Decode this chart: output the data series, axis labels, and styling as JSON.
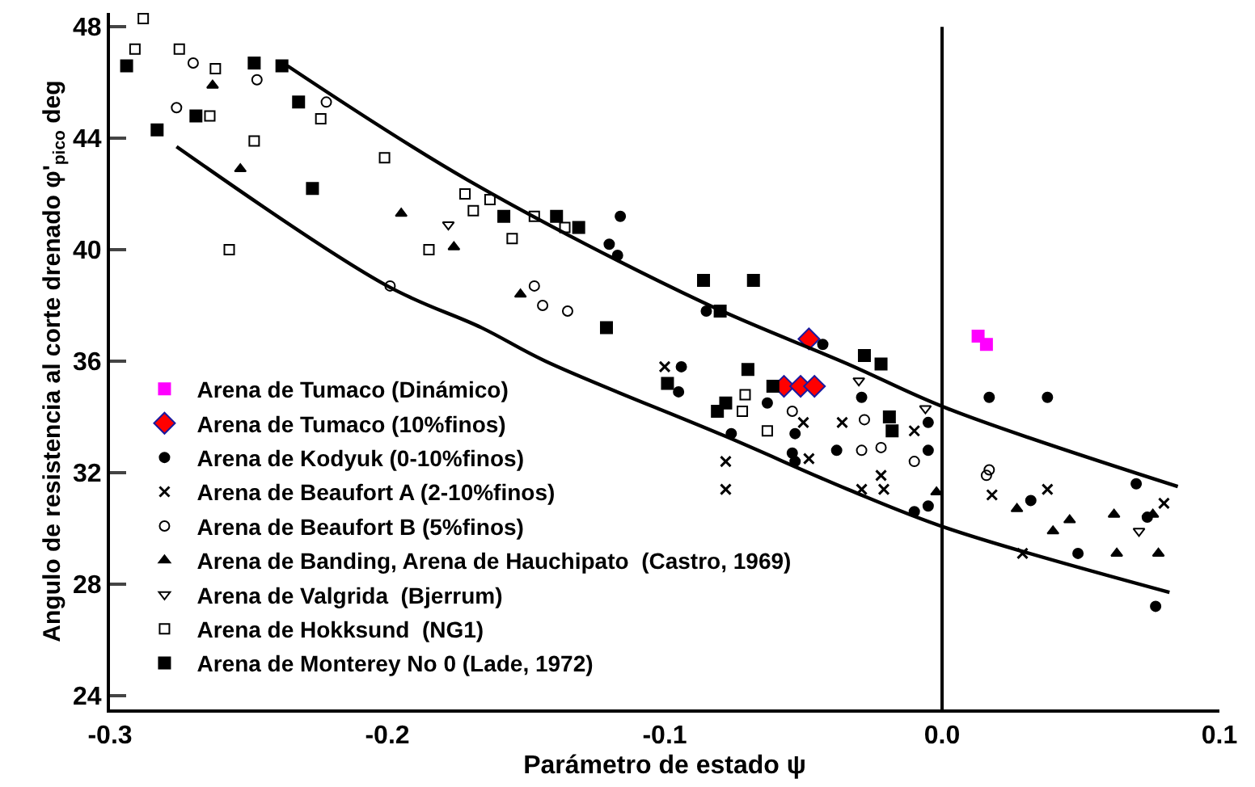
{
  "chart_data": {
    "type": "scatter",
    "xlabel": "Parámetro de estado ψ",
    "ylabel": "Angulo de resistencia al corte drenado φ'$_{pico}$ deg",
    "xlim": [
      -0.3,
      0.1
    ],
    "xticks": [
      -0.3,
      -0.2,
      -0.1,
      {
        "value": 0,
        "label": "0.0"
      },
      0.1
    ],
    "ylim": [
      23.5,
      48.5
    ],
    "yticks": [
      24,
      28,
      32,
      36,
      40,
      44,
      48
    ],
    "legend": "bottom left",
    "ref_lines": [
      {
        "axis": "x",
        "value": 0,
        "color": "#000000"
      }
    ],
    "series": [
      {
        "name": "Arena de Tumaco (Dinámico)",
        "color": "#ff00ff",
        "marker": "square",
        "x": [
          0.013,
          0.016
        ],
        "values": [
          36.9,
          36.6
        ]
      },
      {
        "name": "Arena de Tumaco (10%finos)",
        "color": "#ff0000",
        "marker": "diamond",
        "x": [
          -0.048,
          -0.057,
          -0.051,
          -0.046
        ],
        "values": [
          36.8,
          35.1,
          35.1,
          35.1
        ]
      },
      {
        "name": "Arena de Kodyuk (0-10%finos)",
        "color": "#000000",
        "marker": "circle",
        "x": [
          -0.116,
          -0.12,
          -0.117,
          -0.085,
          -0.043,
          -0.094,
          -0.095,
          -0.063,
          -0.053,
          -0.076,
          -0.054,
          -0.053,
          -0.038,
          -0.029,
          -0.005,
          -0.005,
          -0.005,
          -0.01,
          0.017,
          0.038,
          0.032,
          0.049,
          0.07,
          0.074,
          0.077
        ],
        "values": [
          41.2,
          40.2,
          39.8,
          37.8,
          36.6,
          35.8,
          34.9,
          34.5,
          33.4,
          33.4,
          32.7,
          32.4,
          32.8,
          34.7,
          33.8,
          32.8,
          30.8,
          30.6,
          34.7,
          34.7,
          31.0,
          29.1,
          31.6,
          30.4,
          27.2
        ]
      },
      {
        "name": "Arena de Beaufort A (2-10%finos)",
        "color": "#000000",
        "marker": "cross",
        "x": [
          -0.1,
          -0.05,
          -0.036,
          -0.048,
          -0.078,
          -0.078,
          -0.01,
          -0.022,
          -0.029,
          -0.021,
          0.018,
          0.038,
          0.08,
          0.029
        ],
        "values": [
          35.8,
          33.8,
          33.8,
          32.5,
          32.4,
          31.4,
          33.5,
          31.9,
          31.4,
          31.4,
          31.2,
          31.4,
          30.9,
          29.1
        ]
      },
      {
        "name": "Arena de Beaufort B (5%finos)",
        "color": "#000000",
        "marker": "circle-open",
        "x": [
          -0.27,
          -0.247,
          -0.276,
          -0.222,
          -0.199,
          -0.147,
          -0.144,
          -0.135,
          -0.054,
          -0.028,
          -0.029,
          -0.022,
          -0.01,
          0.016,
          0.017
        ],
        "values": [
          46.7,
          46.1,
          45.1,
          45.3,
          38.7,
          38.7,
          38.0,
          37.8,
          34.2,
          33.9,
          32.8,
          32.9,
          32.4,
          31.9,
          32.1
        ]
      },
      {
        "name": "Arena de Banding, Arena de Hauchipato  (Castro, 1969)",
        "color": "#000000",
        "marker": "triangle",
        "x": [
          -0.263,
          -0.253,
          -0.195,
          -0.176,
          -0.152,
          -0.002,
          0.027,
          0.046,
          0.04,
          0.062,
          0.063,
          0.078,
          0.076
        ],
        "values": [
          45.9,
          42.9,
          41.3,
          40.1,
          38.4,
          31.3,
          30.7,
          30.3,
          29.9,
          30.5,
          29.1,
          29.1,
          30.5
        ]
      },
      {
        "name": "Arena de Valgrida  (Bjerrum)",
        "color": "#000000",
        "marker": "triangle-down",
        "x": [
          -0.178,
          -0.03,
          -0.006,
          0.071
        ],
        "values": [
          40.9,
          35.3,
          34.3,
          29.9
        ]
      },
      {
        "name": "Arena de Hokksund  (NG1)",
        "color": "#000000",
        "marker": "square-open",
        "x": [
          -0.288,
          -0.291,
          -0.275,
          -0.262,
          -0.264,
          -0.248,
          -0.224,
          -0.201,
          -0.257,
          -0.185,
          -0.172,
          -0.169,
          -0.163,
          -0.147,
          -0.136,
          -0.155,
          -0.071,
          -0.072,
          -0.063
        ],
        "values": [
          48.3,
          47.2,
          47.2,
          46.5,
          44.8,
          43.9,
          44.7,
          43.3,
          40.0,
          40.0,
          42.0,
          41.4,
          41.8,
          41.2,
          40.8,
          40.4,
          34.8,
          34.2,
          33.5
        ]
      },
      {
        "name": "Arena de Monterey No 0 (Lade, 1972)",
        "color": "#000000",
        "marker": "square",
        "x": [
          -0.294,
          -0.248,
          -0.238,
          -0.269,
          -0.283,
          -0.232,
          -0.227,
          -0.158,
          -0.139,
          -0.131,
          -0.121,
          -0.086,
          -0.068,
          -0.08,
          -0.07,
          -0.099,
          -0.061,
          -0.078,
          -0.081,
          -0.028,
          -0.022,
          -0.019,
          -0.018
        ],
        "values": [
          46.6,
          46.7,
          46.6,
          44.8,
          44.3,
          45.3,
          42.2,
          41.2,
          41.2,
          40.8,
          37.2,
          38.9,
          38.9,
          37.8,
          35.7,
          35.2,
          35.1,
          34.5,
          34.2,
          36.2,
          35.9,
          34.0,
          33.5
        ]
      },
      {
        "type": "line",
        "color": "#000000",
        "marker": "none",
        "x": [
          -0.236,
          -0.171,
          -0.086,
          -0.034,
          0.002,
          0.085
        ],
        "values": [
          46.6,
          42.5,
          38.1,
          35.9,
          34.3,
          31.5
        ]
      },
      {
        "type": "line",
        "color": "#000000",
        "marker": "none",
        "x": [
          -0.276,
          -0.2,
          -0.166,
          -0.143,
          -0.078,
          -0.034,
          0.002,
          0.082
        ],
        "values": [
          43.7,
          38.7,
          37.2,
          36.0,
          33.3,
          31.4,
          30.0,
          27.7
        ]
      }
    ]
  }
}
